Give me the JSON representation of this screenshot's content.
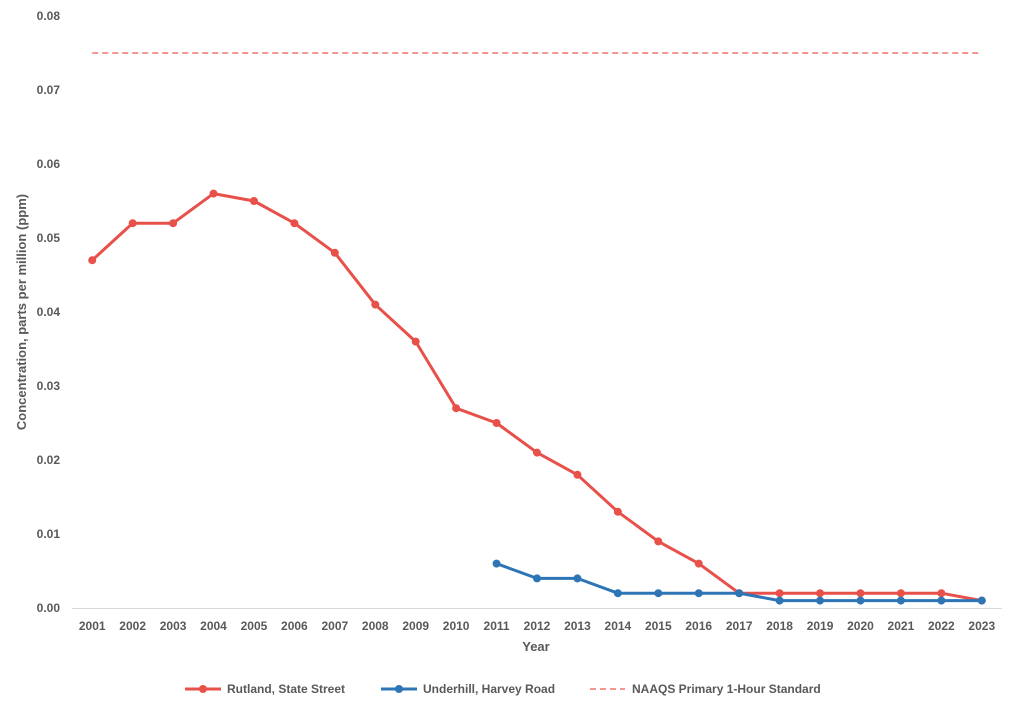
{
  "chart_data": {
    "type": "line",
    "title": "",
    "xlabel": "Year",
    "ylabel": "Concentration, parts per million (ppm)",
    "ylim": [
      0,
      0.08
    ],
    "yticks": [
      "0.00",
      "0.01",
      "0.02",
      "0.03",
      "0.04",
      "0.05",
      "0.06",
      "0.07",
      "0.08"
    ],
    "grid": false,
    "legend_position": "bottom",
    "categories": [
      "2001",
      "2002",
      "2003",
      "2004",
      "2005",
      "2006",
      "2007",
      "2008",
      "2009",
      "2010",
      "2011",
      "2012",
      "2013",
      "2014",
      "2015",
      "2016",
      "2017",
      "2018",
      "2019",
      "2020",
      "2021",
      "2022",
      "2023"
    ],
    "series": [
      {
        "name": "Rutland, State Street",
        "color": "#E8504A",
        "style": "solid-markers",
        "values": [
          0.047,
          0.052,
          0.052,
          0.056,
          0.055,
          0.052,
          0.048,
          0.041,
          0.036,
          0.027,
          0.025,
          0.021,
          0.018,
          0.013,
          0.009,
          0.006,
          0.002,
          0.002,
          0.002,
          0.002,
          0.002,
          0.002,
          0.001
        ]
      },
      {
        "name": "Underhill, Harvey Road",
        "color": "#2E75B6",
        "style": "solid-markers",
        "values": [
          null,
          null,
          null,
          null,
          null,
          null,
          null,
          null,
          null,
          null,
          0.006,
          0.004,
          0.004,
          0.002,
          0.002,
          0.002,
          0.002,
          0.001,
          0.001,
          0.001,
          0.001,
          0.001,
          0.001
        ]
      },
      {
        "name": "NAAQS Primary 1-Hour Standard",
        "color": "#F4736D",
        "style": "dashed",
        "values": [
          0.075,
          0.075,
          0.075,
          0.075,
          0.075,
          0.075,
          0.075,
          0.075,
          0.075,
          0.075,
          0.075,
          0.075,
          0.075,
          0.075,
          0.075,
          0.075,
          0.075,
          0.075,
          0.075,
          0.075,
          0.075,
          0.075,
          0.075
        ]
      }
    ]
  }
}
